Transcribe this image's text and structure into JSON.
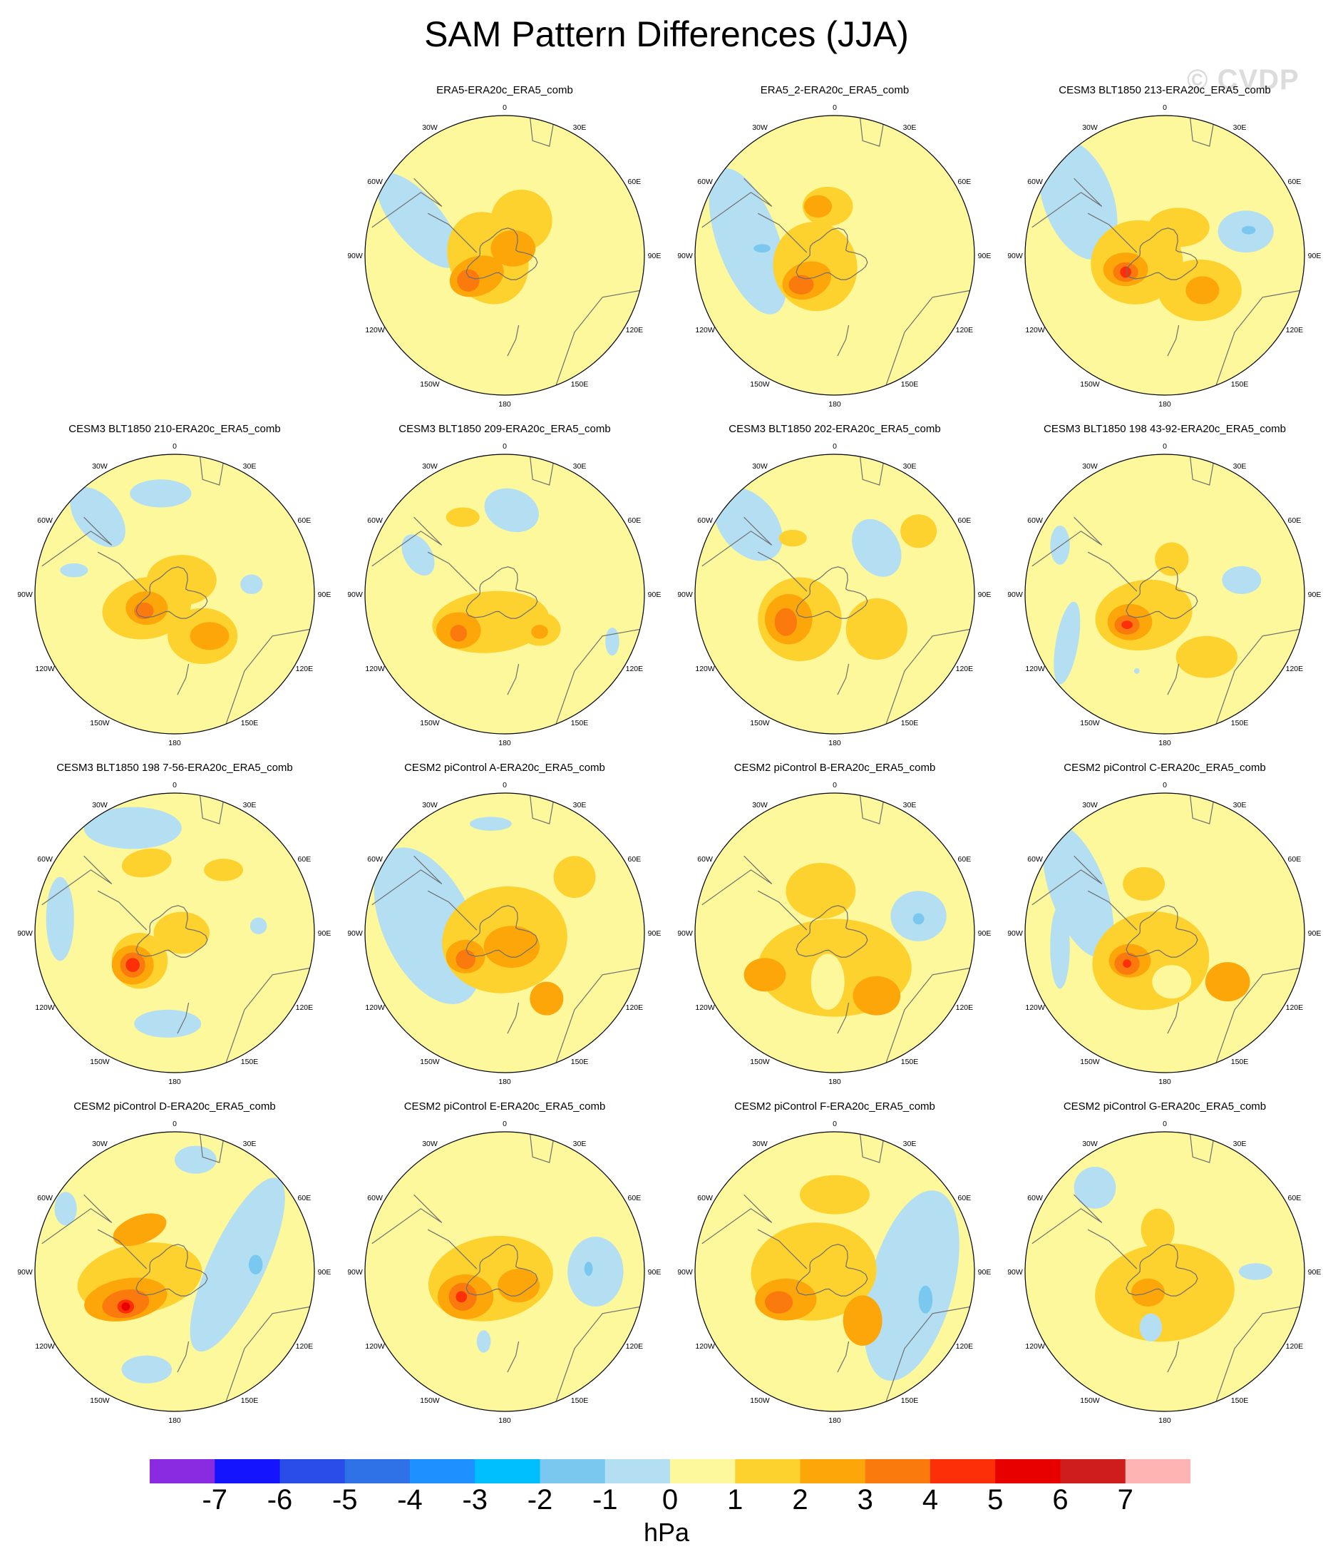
{
  "title": "SAM Pattern Differences (JJA)",
  "watermark": "© CVDP",
  "longitude_labels": [
    "0",
    "30E",
    "60E",
    "90E",
    "120E",
    "150E",
    "180",
    "150W",
    "120W",
    "90W",
    "60W",
    "30W"
  ],
  "colors": {
    "m7": "#8a2be2",
    "m6": "#1414ff",
    "m5": "#2a4ce8",
    "m4": "#2f72e8",
    "m3": "#1e90ff",
    "m2": "#00bfff",
    "m1": "#7ac8f0",
    "m0": "#b4dff2",
    "p0": "#fdf89b",
    "p1": "#fdd12e",
    "p2": "#fca60a",
    "p3": "#fb7a0e",
    "p4": "#fc2f09",
    "p5": "#e80000",
    "p6": "#cf1d1d",
    "p7": "#ffb4b4",
    "coast": "#6e6e6e"
  },
  "colorbar": {
    "colors": [
      "#8a2be2",
      "#1414ff",
      "#2a4ce8",
      "#2f72e8",
      "#1e90ff",
      "#00bfff",
      "#7ac8f0",
      "#b4dff2",
      "#fdf89b",
      "#fdd12e",
      "#fca60a",
      "#fb7a0e",
      "#fc2f09",
      "#e80000",
      "#cf1d1d",
      "#ffb4b4"
    ],
    "ticks": [
      "-7",
      "-6",
      "-5",
      "-4",
      "-3",
      "-2",
      "-1",
      "0",
      "1",
      "2",
      "3",
      "4",
      "5",
      "6",
      "7"
    ],
    "unit": "hPa"
  },
  "panels": [
    {
      "title": "ERA5-ERA20c_ERA5_comb",
      "blobs": [
        [
          "m0",
          -0.62,
          -0.25,
          0.17,
          0.42,
          -40
        ],
        [
          "p1",
          -0.12,
          0.02,
          0.28,
          0.34,
          -25
        ],
        [
          "p1",
          0.12,
          -0.25,
          0.22,
          0.22,
          0
        ],
        [
          "p2",
          -0.2,
          0.15,
          0.2,
          0.14,
          -20
        ],
        [
          "p2",
          0.06,
          -0.05,
          0.16,
          0.13,
          0
        ],
        [
          "p3",
          -0.26,
          0.18,
          0.08,
          0.08,
          0
        ]
      ]
    },
    {
      "title": "ERA5_2-ERA20c_ERA5_comb",
      "blobs": [
        [
          "m0",
          -0.62,
          -0.1,
          0.22,
          0.55,
          -20
        ],
        [
          "m1",
          -0.52,
          -0.05,
          0.06,
          0.03,
          0
        ],
        [
          "p1",
          -0.14,
          0.08,
          0.3,
          0.32,
          -15
        ],
        [
          "p1",
          -0.05,
          -0.35,
          0.18,
          0.14,
          0
        ],
        [
          "p2",
          -0.2,
          0.18,
          0.18,
          0.13,
          -20
        ],
        [
          "p2",
          -0.12,
          -0.35,
          0.1,
          0.08,
          0
        ],
        [
          "p3",
          -0.24,
          0.21,
          0.09,
          0.07,
          0
        ]
      ]
    },
    {
      "title": "CESM3 BLT1850 213-ERA20c_ERA5_comb",
      "blobs": [
        [
          "m0",
          -0.62,
          -0.4,
          0.25,
          0.45,
          -20
        ],
        [
          "m0",
          0.58,
          -0.17,
          0.2,
          0.15,
          0
        ],
        [
          "m1",
          0.6,
          -0.18,
          0.05,
          0.03,
          0
        ],
        [
          "p1",
          -0.2,
          0.05,
          0.33,
          0.3,
          -10
        ],
        [
          "p1",
          0.25,
          0.25,
          0.3,
          0.22,
          0
        ],
        [
          "p1",
          0.1,
          -0.2,
          0.22,
          0.14,
          0
        ],
        [
          "p2",
          -0.28,
          0.1,
          0.16,
          0.12,
          0
        ],
        [
          "p2",
          0.27,
          0.25,
          0.12,
          0.1,
          0
        ],
        [
          "p3",
          -0.28,
          0.12,
          0.09,
          0.07,
          0
        ],
        [
          "p4",
          -0.28,
          0.12,
          0.04,
          0.04,
          0
        ]
      ]
    },
    {
      "title": "CESM3 BLT1850 210-ERA20c_ERA5_comb",
      "blobs": [
        [
          "m0",
          -0.55,
          -0.55,
          0.15,
          0.25,
          -40
        ],
        [
          "m0",
          -0.1,
          -0.72,
          0.22,
          0.1,
          0
        ],
        [
          "m0",
          0.55,
          -0.07,
          0.08,
          0.07,
          0
        ],
        [
          "m0",
          -0.72,
          -0.17,
          0.1,
          0.05,
          0
        ],
        [
          "p1",
          -0.2,
          0.1,
          0.32,
          0.22,
          -10
        ],
        [
          "p1",
          0.2,
          0.3,
          0.25,
          0.2,
          0
        ],
        [
          "p1",
          0.05,
          -0.1,
          0.25,
          0.18,
          0
        ],
        [
          "p2",
          -0.2,
          0.1,
          0.15,
          0.12,
          0
        ],
        [
          "p2",
          0.25,
          0.3,
          0.14,
          0.1,
          0
        ],
        [
          "p3",
          -0.22,
          0.12,
          0.07,
          0.06,
          0
        ]
      ]
    },
    {
      "title": "CESM3 BLT1850 209-ERA20c_ERA5_comb",
      "blobs": [
        [
          "m0",
          -0.62,
          -0.28,
          0.1,
          0.16,
          -30
        ],
        [
          "m0",
          0.05,
          -0.6,
          0.2,
          0.15,
          20
        ],
        [
          "m0",
          0.77,
          0.34,
          0.05,
          0.1,
          0
        ],
        [
          "p1",
          -0.1,
          0.2,
          0.42,
          0.22,
          -5
        ],
        [
          "p1",
          -0.3,
          -0.55,
          0.12,
          0.07,
          0
        ],
        [
          "p1",
          0.25,
          0.25,
          0.15,
          0.12,
          0
        ],
        [
          "p2",
          -0.33,
          0.26,
          0.16,
          0.13,
          0
        ],
        [
          "p2",
          0.25,
          0.27,
          0.06,
          0.05,
          0
        ],
        [
          "p3",
          -0.33,
          0.28,
          0.06,
          0.06,
          0
        ]
      ]
    },
    {
      "title": "CESM3 BLT1850 202-ERA20c_ERA5_comb",
      "blobs": [
        [
          "m0",
          -0.62,
          -0.5,
          0.2,
          0.3,
          -40
        ],
        [
          "m0",
          0.3,
          -0.33,
          0.16,
          0.22,
          -30
        ],
        [
          "m0",
          0.05,
          0.48,
          0.1,
          0.12,
          0
        ],
        [
          "p1",
          -0.25,
          0.18,
          0.3,
          0.3,
          -10
        ],
        [
          "p1",
          0.3,
          0.25,
          0.22,
          0.22,
          0
        ],
        [
          "p1",
          0.6,
          -0.45,
          0.13,
          0.12,
          0
        ],
        [
          "p1",
          -0.3,
          -0.4,
          0.1,
          0.06,
          0
        ],
        [
          "p2",
          -0.33,
          0.18,
          0.17,
          0.18,
          0
        ],
        [
          "p0",
          0.05,
          0.5,
          0.13,
          0.15,
          0
        ],
        [
          "p3",
          -0.35,
          0.2,
          0.08,
          0.1,
          0
        ]
      ]
    },
    {
      "title": "CESM3 BLT1850 198 43-92-ERA20c_ERA5_comb",
      "blobs": [
        [
          "m0",
          -0.7,
          0.35,
          0.08,
          0.3,
          10
        ],
        [
          "m0",
          0.55,
          -0.1,
          0.14,
          0.1,
          0
        ],
        [
          "m0",
          -0.75,
          -0.35,
          0.07,
          0.14,
          0
        ],
        [
          "m0",
          -0.2,
          0.55,
          0.02,
          0.02,
          0
        ],
        [
          "p1",
          -0.15,
          0.15,
          0.35,
          0.25,
          -10
        ],
        [
          "p1",
          0.05,
          -0.25,
          0.12,
          0.12,
          0
        ],
        [
          "p1",
          0.3,
          0.45,
          0.22,
          0.15,
          0
        ],
        [
          "p2",
          -0.25,
          0.2,
          0.16,
          0.13,
          0
        ],
        [
          "p3",
          -0.27,
          0.22,
          0.09,
          0.07,
          0
        ],
        [
          "p4",
          -0.27,
          0.22,
          0.04,
          0.03,
          0
        ]
      ]
    },
    {
      "title": "CESM3 BLT1850 198 7-56-ERA20c_ERA5_comb",
      "blobs": [
        [
          "m0",
          -0.3,
          -0.75,
          0.35,
          0.15,
          0
        ],
        [
          "m0",
          -0.82,
          -0.1,
          0.1,
          0.3,
          0
        ],
        [
          "m0",
          -0.05,
          0.65,
          0.24,
          0.1,
          0
        ],
        [
          "m0",
          0.6,
          -0.05,
          0.06,
          0.06,
          0
        ],
        [
          "p1",
          -0.2,
          -0.5,
          0.18,
          0.1,
          -10
        ],
        [
          "p1",
          0.35,
          -0.45,
          0.14,
          0.08,
          0
        ],
        [
          "p1",
          -0.25,
          0.2,
          0.2,
          0.2,
          0
        ],
        [
          "p1",
          0.05,
          0.0,
          0.2,
          0.15,
          0
        ],
        [
          "p2",
          -0.3,
          0.23,
          0.15,
          0.14,
          0
        ],
        [
          "p3",
          -0.3,
          0.23,
          0.09,
          0.09,
          0
        ],
        [
          "p4",
          -0.3,
          0.23,
          0.05,
          0.05,
          0
        ]
      ]
    },
    {
      "title": "CESM2 piControl A-ERA20c_ERA5_comb",
      "blobs": [
        [
          "m0",
          -0.55,
          -0.05,
          0.32,
          0.6,
          -25
        ],
        [
          "m0",
          -0.1,
          -0.78,
          0.15,
          0.05,
          0
        ],
        [
          "p1",
          0.0,
          0.05,
          0.45,
          0.38,
          -10
        ],
        [
          "p1",
          0.5,
          -0.4,
          0.15,
          0.15,
          0
        ],
        [
          "p2",
          -0.28,
          0.17,
          0.14,
          0.12,
          0
        ],
        [
          "p2",
          0.3,
          0.47,
          0.12,
          0.12,
          0
        ],
        [
          "p2",
          0.05,
          0.1,
          0.2,
          0.15,
          0
        ],
        [
          "p3",
          -0.28,
          0.19,
          0.07,
          0.07,
          0
        ]
      ]
    },
    {
      "title": "CESM2 piControl B-ERA20c_ERA5_comb",
      "blobs": [
        [
          "m0",
          0.6,
          -0.12,
          0.2,
          0.18,
          0
        ],
        [
          "m0",
          -0.05,
          0.3,
          0.08,
          0.13,
          0
        ],
        [
          "m1",
          0.6,
          -0.1,
          0.04,
          0.04,
          0
        ],
        [
          "p1",
          0.0,
          0.25,
          0.55,
          0.35,
          0
        ],
        [
          "p1",
          -0.1,
          -0.3,
          0.25,
          0.2,
          0
        ],
        [
          "p2",
          -0.5,
          0.3,
          0.15,
          0.12,
          0
        ],
        [
          "p2",
          0.3,
          0.45,
          0.17,
          0.14,
          0
        ],
        [
          "p0",
          -0.05,
          0.35,
          0.12,
          0.2,
          0
        ]
      ]
    },
    {
      "title": "CESM2 piControl C-ERA20c_ERA5_comb",
      "blobs": [
        [
          "m0",
          -0.62,
          -0.3,
          0.2,
          0.5,
          -20
        ],
        [
          "m0",
          -0.75,
          0.1,
          0.07,
          0.3,
          0
        ],
        [
          "p1",
          -0.1,
          0.2,
          0.42,
          0.35,
          -10
        ],
        [
          "p1",
          -0.15,
          -0.35,
          0.15,
          0.12,
          0
        ],
        [
          "p2",
          -0.25,
          0.2,
          0.15,
          0.12,
          0
        ],
        [
          "p2",
          0.45,
          0.35,
          0.16,
          0.14,
          0
        ],
        [
          "p3",
          -0.27,
          0.22,
          0.09,
          0.08,
          0
        ],
        [
          "p4",
          -0.27,
          0.22,
          0.03,
          0.03,
          0
        ],
        [
          "p0",
          0.05,
          0.35,
          0.14,
          0.12,
          0
        ]
      ]
    },
    {
      "title": "CESM2 piControl D-ERA20c_ERA5_comb",
      "blobs": [
        [
          "m0",
          0.45,
          -0.05,
          0.2,
          0.68,
          25
        ],
        [
          "m0",
          0.15,
          -0.8,
          0.15,
          0.1,
          0
        ],
        [
          "m0",
          -0.2,
          0.7,
          0.18,
          0.1,
          0
        ],
        [
          "m0",
          -0.78,
          -0.45,
          0.08,
          0.12,
          0
        ],
        [
          "m1",
          0.58,
          -0.05,
          0.05,
          0.07,
          0
        ],
        [
          "p1",
          -0.25,
          0.05,
          0.45,
          0.25,
          -10
        ],
        [
          "p2",
          -0.35,
          0.2,
          0.3,
          0.15,
          -10
        ],
        [
          "p2",
          -0.25,
          -0.3,
          0.2,
          0.1,
          -20
        ],
        [
          "p3",
          -0.35,
          0.23,
          0.17,
          0.1,
          -10
        ],
        [
          "p4",
          -0.35,
          0.25,
          0.06,
          0.05,
          0
        ],
        [
          "p5",
          -0.35,
          0.25,
          0.03,
          0.03,
          0
        ]
      ]
    },
    {
      "title": "CESM2 piControl E-ERA20c_ERA5_comb",
      "blobs": [
        [
          "m0",
          0.65,
          0.0,
          0.2,
          0.25,
          0
        ],
        [
          "m0",
          -0.15,
          0.5,
          0.05,
          0.08,
          0
        ],
        [
          "m1",
          0.6,
          -0.02,
          0.03,
          0.05,
          0
        ],
        [
          "p1",
          -0.1,
          0.05,
          0.45,
          0.3,
          -10
        ],
        [
          "p2",
          -0.28,
          0.18,
          0.2,
          0.16,
          0
        ],
        [
          "p2",
          0.1,
          0.1,
          0.15,
          0.12,
          0
        ],
        [
          "p3",
          -0.3,
          0.18,
          0.1,
          0.1,
          0
        ],
        [
          "p4",
          -0.31,
          0.18,
          0.04,
          0.04,
          0
        ]
      ]
    },
    {
      "title": "CESM2 piControl F-ERA20c_ERA5_comb",
      "blobs": [
        [
          "m0",
          0.55,
          0.1,
          0.3,
          0.7,
          15
        ],
        [
          "m1",
          0.65,
          0.2,
          0.05,
          0.1,
          0
        ],
        [
          "p1",
          -0.15,
          0.0,
          0.45,
          0.35,
          -5
        ],
        [
          "p1",
          0.0,
          -0.55,
          0.25,
          0.14,
          0
        ],
        [
          "p2",
          -0.35,
          0.2,
          0.22,
          0.15,
          0
        ],
        [
          "p2",
          0.2,
          0.35,
          0.14,
          0.18,
          0
        ],
        [
          "p3",
          -0.4,
          0.22,
          0.1,
          0.08,
          0
        ]
      ]
    },
    {
      "title": "CESM2 piControl G-ERA20c_ERA5_comb",
      "blobs": [
        [
          "m0",
          -0.5,
          -0.6,
          0.15,
          0.15,
          0
        ],
        [
          "m0",
          0.65,
          0.0,
          0.12,
          0.06,
          0
        ],
        [
          "p1",
          0.0,
          0.15,
          0.5,
          0.35,
          -5
        ],
        [
          "p1",
          -0.05,
          -0.3,
          0.12,
          0.15,
          0
        ],
        [
          "p2",
          -0.12,
          0.15,
          0.12,
          0.1,
          0
        ],
        [
          "m0",
          -0.1,
          0.4,
          0.08,
          0.1,
          0
        ]
      ]
    }
  ]
}
